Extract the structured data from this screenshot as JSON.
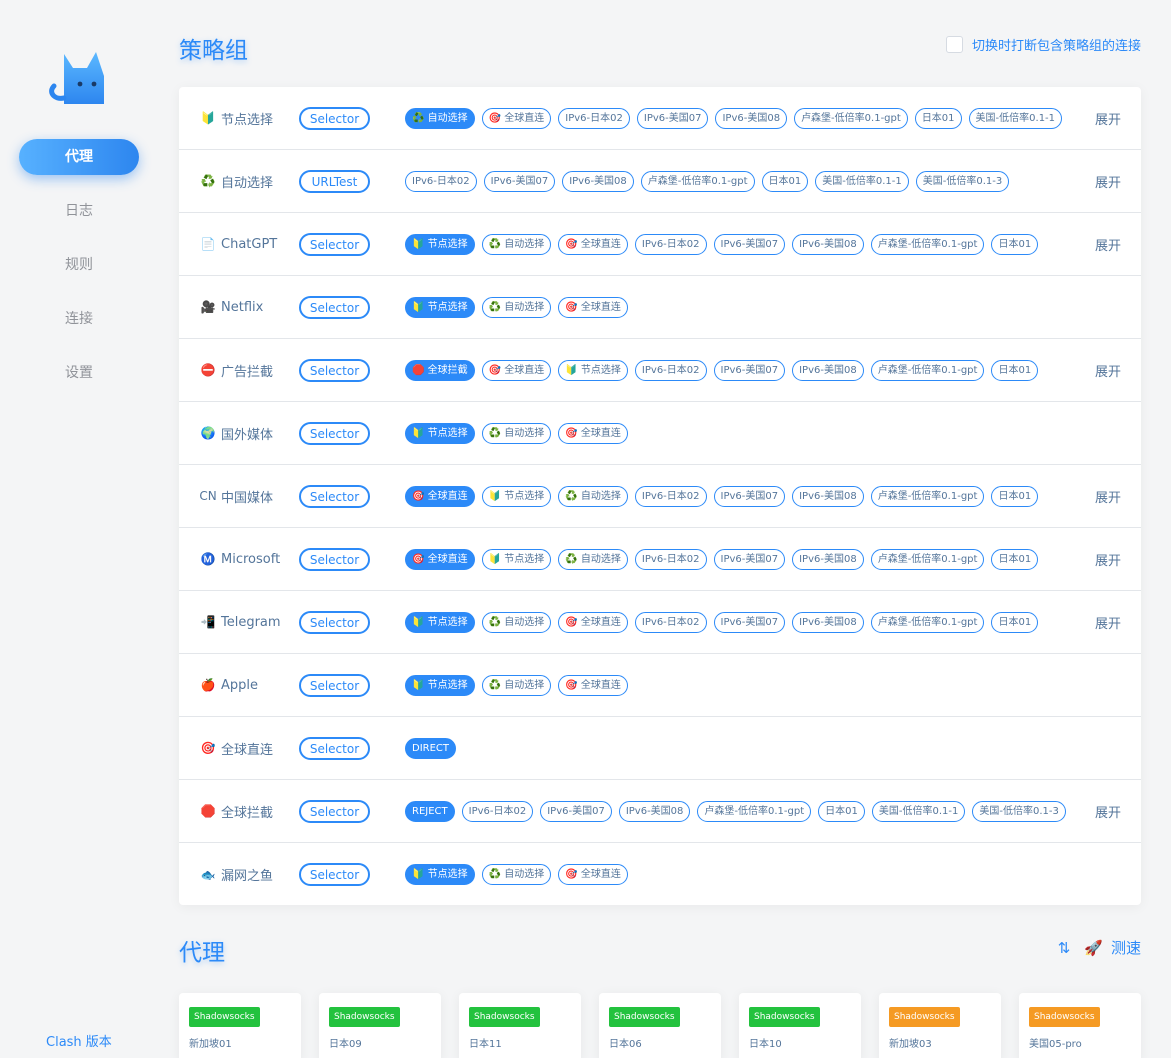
{
  "sidebar": {
    "nav": [
      "代理",
      "日志",
      "规则",
      "连接",
      "设置"
    ],
    "footer": "Clash 版本"
  },
  "groups_section": {
    "title": "策略组",
    "break_toggle_label": "切换时打断包含策略组的连接"
  },
  "groups": [
    {
      "icon": "🔰",
      "name": "节点选择",
      "type": "Selector",
      "selected": "♻️ 自动选择",
      "options": [
        "🎯 全球直连",
        "IPv6-日本02",
        "IPv6-美国07",
        "IPv6-美国08",
        "卢森堡-低倍率0.1-gpt",
        "日本01",
        "美国-低倍率0.1-1"
      ],
      "expand": "展开"
    },
    {
      "icon": "♻️",
      "name": "自动选择",
      "type": "URLTest",
      "selected": "",
      "options": [
        "IPv6-日本02",
        "IPv6-美国07",
        "IPv6-美国08",
        "卢森堡-低倍率0.1-gpt",
        "日本01",
        "美国-低倍率0.1-1",
        "美国-低倍率0.1-3"
      ],
      "expand": "展开"
    },
    {
      "icon": "📄",
      "name": "ChatGPT",
      "type": "Selector",
      "selected": "🔰 节点选择",
      "options": [
        "♻️ 自动选择",
        "🎯 全球直连",
        "IPv6-日本02",
        "IPv6-美国07",
        "IPv6-美国08",
        "卢森堡-低倍率0.1-gpt",
        "日本01"
      ],
      "expand": "展开"
    },
    {
      "icon": "🎥",
      "name": "Netflix",
      "type": "Selector",
      "selected": "🔰 节点选择",
      "options": [
        "♻️ 自动选择",
        "🎯 全球直连"
      ],
      "expand": ""
    },
    {
      "icon": "⛔",
      "name": "广告拦截",
      "type": "Selector",
      "selected": "🛑 全球拦截",
      "options": [
        "🎯 全球直连",
        "🔰 节点选择",
        "IPv6-日本02",
        "IPv6-美国07",
        "IPv6-美国08",
        "卢森堡-低倍率0.1-gpt",
        "日本01"
      ],
      "expand": "展开"
    },
    {
      "icon": "🌍",
      "name": "国外媒体",
      "type": "Selector",
      "selected": "🔰 节点选择",
      "options": [
        "♻️ 自动选择",
        "🎯 全球直连"
      ],
      "expand": ""
    },
    {
      "icon": "CN",
      "name": "中国媒体",
      "type": "Selector",
      "selected": "🎯 全球直连",
      "options": [
        "🔰 节点选择",
        "♻️ 自动选择",
        "IPv6-日本02",
        "IPv6-美国07",
        "IPv6-美国08",
        "卢森堡-低倍率0.1-gpt",
        "日本01"
      ],
      "expand": "展开"
    },
    {
      "icon": "Ⓜ️",
      "name": "Microsoft",
      "type": "Selector",
      "selected": "🎯 全球直连",
      "options": [
        "🔰 节点选择",
        "♻️ 自动选择",
        "IPv6-日本02",
        "IPv6-美国07",
        "IPv6-美国08",
        "卢森堡-低倍率0.1-gpt",
        "日本01"
      ],
      "expand": "展开"
    },
    {
      "icon": "📲",
      "name": "Telegram",
      "type": "Selector",
      "selected": "🔰 节点选择",
      "options": [
        "♻️ 自动选择",
        "🎯 全球直连",
        "IPv6-日本02",
        "IPv6-美国07",
        "IPv6-美国08",
        "卢森堡-低倍率0.1-gpt",
        "日本01"
      ],
      "expand": "展开"
    },
    {
      "icon": "🍎",
      "name": "Apple",
      "type": "Selector",
      "selected": "🔰 节点选择",
      "options": [
        "♻️ 自动选择",
        "🎯 全球直连"
      ],
      "expand": ""
    },
    {
      "icon": "🎯",
      "name": "全球直连",
      "type": "Selector",
      "selected": "DIRECT",
      "options": [],
      "expand": ""
    },
    {
      "icon": "🛑",
      "name": "全球拦截",
      "type": "Selector",
      "selected": "REJECT",
      "options": [
        "IPv6-日本02",
        "IPv6-美国07",
        "IPv6-美国08",
        "卢森堡-低倍率0.1-gpt",
        "日本01",
        "美国-低倍率0.1-1",
        "美国-低倍率0.1-3"
      ],
      "expand": "展开"
    },
    {
      "icon": "🐟",
      "name": "漏网之鱼",
      "type": "Selector",
      "selected": "🔰 节点选择",
      "options": [
        "♻️ 自动选择",
        "🎯 全球直连"
      ],
      "expand": ""
    }
  ],
  "proxies_section": {
    "title": "代理",
    "speedtest_label": "测速"
  },
  "proxies": [
    {
      "type": "Shadowsocks",
      "name": "新加坡01",
      "color": "#23c23e"
    },
    {
      "type": "Shadowsocks",
      "name": "日本09",
      "color": "#23c23e"
    },
    {
      "type": "Shadowsocks",
      "name": "日本11",
      "color": "#23c23e"
    },
    {
      "type": "Shadowsocks",
      "name": "日本06",
      "color": "#23c23e"
    },
    {
      "type": "Shadowsocks",
      "name": "日本10",
      "color": "#23c23e"
    },
    {
      "type": "Shadowsocks",
      "name": "新加坡03",
      "color": "#f59a23"
    },
    {
      "type": "Shadowsocks",
      "name": "美国05-pro",
      "color": "#f59a23"
    }
  ],
  "colors": {
    "accent": "#2c8af8",
    "text": "#54759a",
    "ok": "#23c23e",
    "warn": "#f59a23"
  }
}
